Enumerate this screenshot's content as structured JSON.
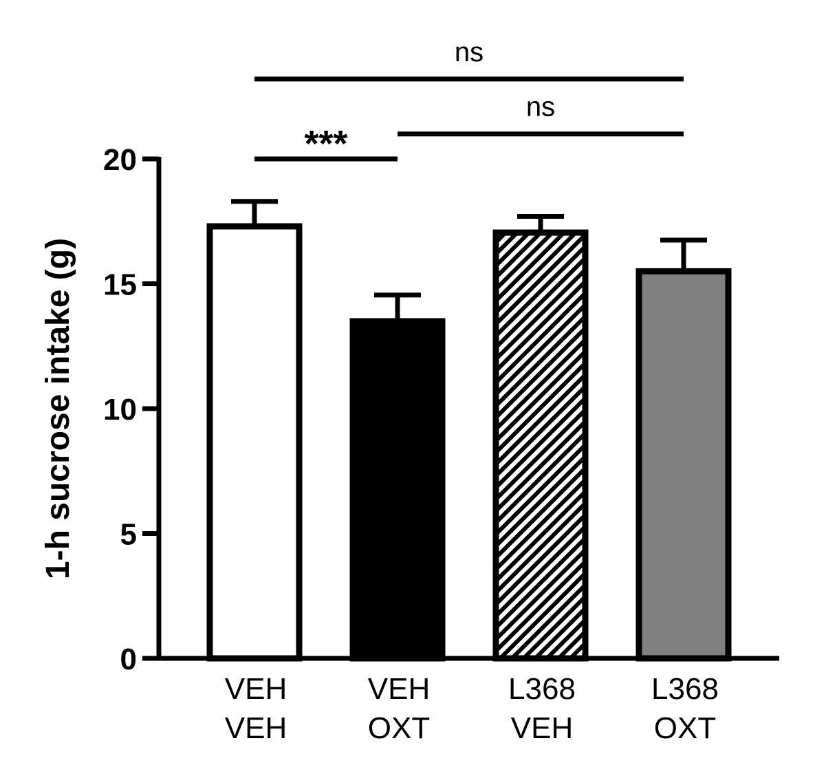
{
  "chart_data": {
    "type": "bar",
    "title": "",
    "xlabel": "",
    "ylabel": "1-h sucrose intake (g)",
    "ylim": [
      0,
      20
    ],
    "yticks": [
      0,
      5,
      10,
      15,
      20
    ],
    "grid": false,
    "categories": [
      {
        "line1": "VEH",
        "line2": "VEH"
      },
      {
        "line1": "VEH",
        "line2": "OXT"
      },
      {
        "line1": "L368",
        "line2": "VEH"
      },
      {
        "line1": "L368",
        "line2": "OXT"
      }
    ],
    "values": [
      17.3,
      13.5,
      17.05,
      15.5
    ],
    "errors": [
      1.0,
      1.05,
      0.65,
      1.25
    ],
    "fills": [
      "#ffffff",
      "#000000",
      "hatch",
      "#808080"
    ],
    "significance": [
      {
        "from": 0,
        "to": 1,
        "label": "***",
        "level": 20
      },
      {
        "from": 1,
        "to": 3,
        "label": "ns",
        "level": 21
      },
      {
        "from": 0,
        "to": 3,
        "label": "ns",
        "level": 23.2
      }
    ]
  }
}
